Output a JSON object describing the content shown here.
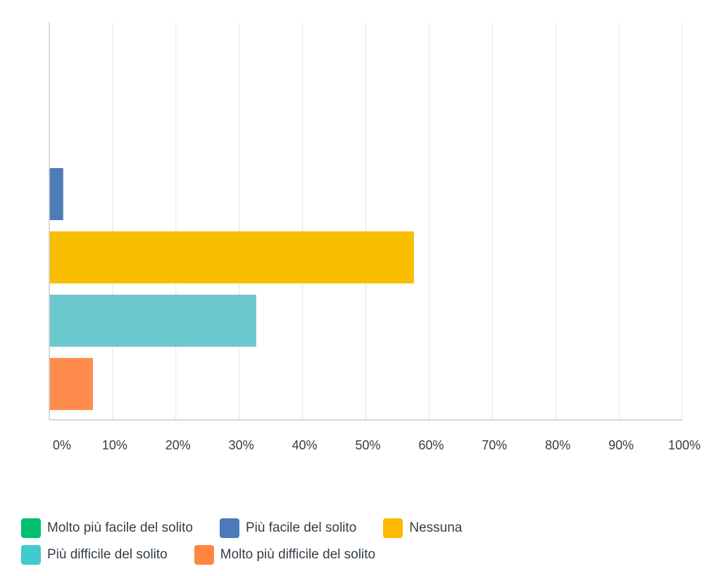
{
  "chart_data": {
    "type": "bar",
    "orientation": "horizontal",
    "categories": [
      "Molto più facile del solito",
      "Più facile del solito",
      "Nessuna",
      "Più difficile del solito",
      "Molto più difficile del solito"
    ],
    "values": [
      0,
      2.2,
      57.6,
      32.7,
      6.9
    ],
    "colors": [
      "#00bf6f",
      "#507cb6",
      "#f9be00",
      "#6bc8cd",
      "#ff8b4f"
    ],
    "xlim": [
      0,
      100
    ],
    "x_ticks": [
      "0%",
      "10%",
      "20%",
      "30%",
      "40%",
      "50%",
      "60%",
      "70%",
      "80%",
      "90%",
      "100%"
    ],
    "grid": true,
    "legend_position": "bottom"
  },
  "legend": {
    "items": [
      {
        "label": "Molto più facile del solito",
        "color": "#00bf6f"
      },
      {
        "label": "Più facile del solito",
        "color": "#4a7ab8"
      },
      {
        "label": "Nessuna",
        "color": "#fcb900"
      },
      {
        "label": "Più difficile del solito",
        "color": "#42cbcc"
      },
      {
        "label": "Molto più difficile del solito",
        "color": "#ff8541"
      }
    ]
  }
}
